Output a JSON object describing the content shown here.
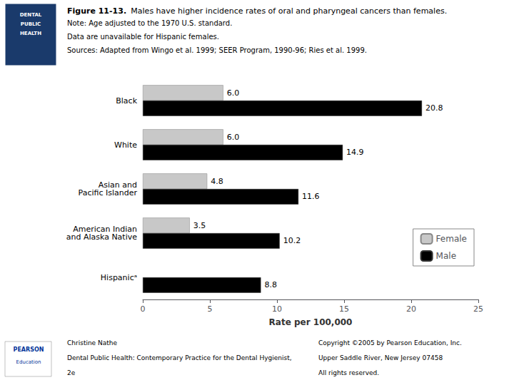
{
  "chart_data": {
    "type": "bar",
    "orientation": "horizontal",
    "title": "Figure 11-13.",
    "subtitle": "Males have higher incidence rates of oral and pharyngeal cancers than females.",
    "categories": [
      "Black",
      "White",
      "Asian and\nPacific Islander",
      "American Indian\nand Alaska Native",
      "Hispanicᵃ"
    ],
    "series": [
      {
        "name": "Female",
        "color": "#c8c8c8",
        "values": [
          6.0,
          6.0,
          4.8,
          3.5,
          null
        ],
        "value_labels": [
          "6.0",
          "6.0",
          "4.8",
          "3.5",
          null
        ]
      },
      {
        "name": "Male",
        "color": "#000000",
        "values": [
          20.8,
          14.9,
          11.6,
          10.2,
          8.8
        ],
        "value_labels": [
          "20.8",
          "14.9",
          "11.6",
          "10.2",
          "8.8"
        ]
      }
    ],
    "xlabel": "Rate per 100,000",
    "xlim": [
      0,
      25
    ],
    "xticks": [
      0,
      5,
      10,
      15,
      20,
      25
    ],
    "grid": false,
    "legend": "lower right",
    "data_labels": true,
    "annotations": [
      "DENTAL",
      "PUBLIC",
      "HEALTH",
      "Note: Age adjusted to the 1970 U.S. standard.",
      "Data are unavailable for Hispanic females.",
      "Sources: Adapted from Wingo et al. 1999; SEER Program, 1990-96; Ries et al. 1999.",
      "PEARSON",
      "Education",
      "Christine Nathe",
      "Dental Public Health: Contemporary Practice for the Dental Hygienist,",
      "2e",
      "Copyright ©2005 by Pearson Education, Inc.",
      "Upper Saddle River, New Jersey 07458",
      "All rights reserved."
    ]
  }
}
